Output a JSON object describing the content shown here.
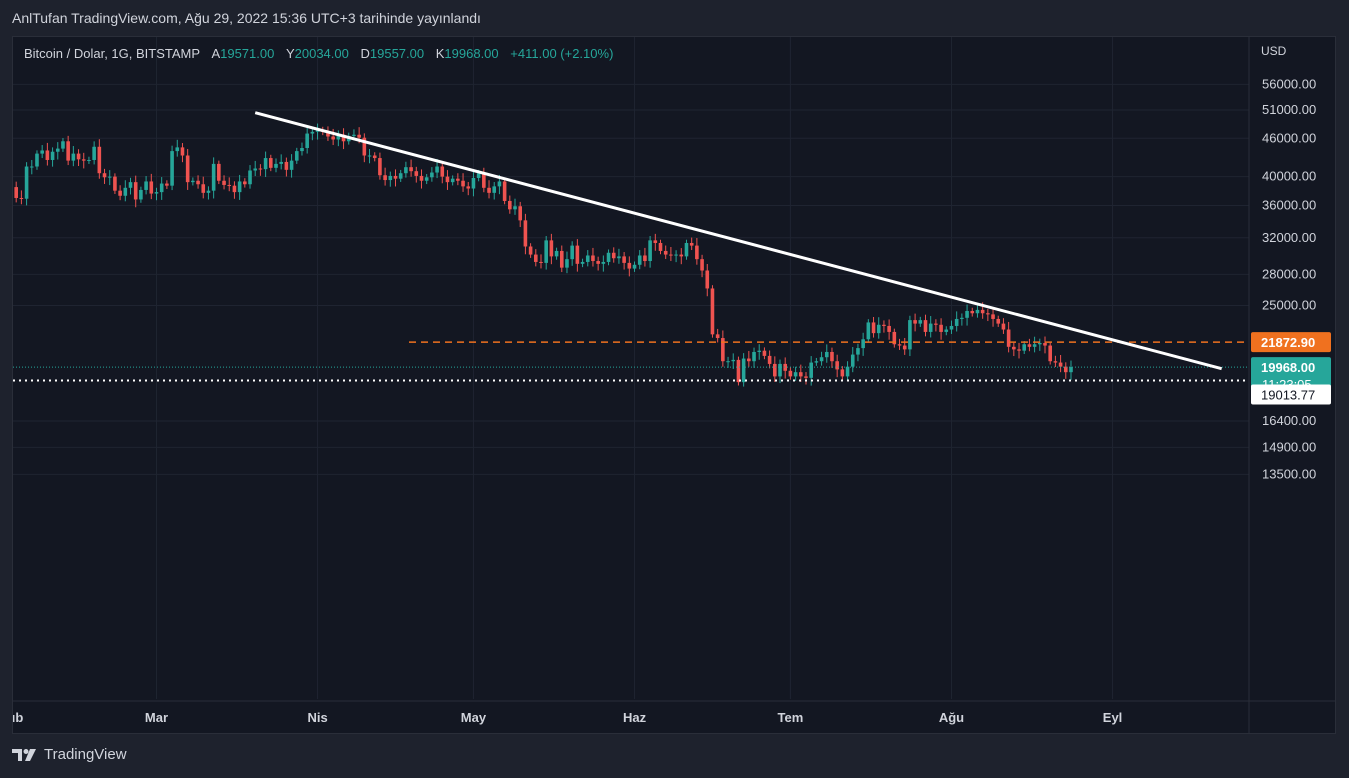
{
  "header": {
    "published": "AnlTufan TradingView.com, Ağu 29, 2022 15:36 UTC+3 tarihinde yayınlandı"
  },
  "legend": {
    "symbol": "Bitcoin / Dolar, 1G, BITSTAMP",
    "open_label": "A",
    "open": "19571.00",
    "high_label": "Y",
    "high": "20034.00",
    "low_label": "D",
    "low": "19557.00",
    "close_label": "K",
    "close": "19968.00",
    "change": "+411.00 (+2.10%)"
  },
  "footer": {
    "brand": "TradingView"
  },
  "colors": {
    "up": "#26a69a",
    "down": "#ef5350",
    "bg": "#131722",
    "grid": "#1f2431",
    "trend": "#ffffff",
    "level": "#f0711f"
  },
  "chart_data": {
    "type": "candlestick",
    "title": "Bitcoin / Dolar, 1G, BITSTAMP",
    "currency": "USD",
    "y_scale": "log",
    "ylim": [
      12000,
      62000
    ],
    "x_start": "2022-02-01",
    "x_ticks": [
      {
        "label": "Şub",
        "date": "2022-02-01"
      },
      {
        "label": "Mar",
        "date": "2022-03-01"
      },
      {
        "label": "Nis",
        "date": "2022-04-01"
      },
      {
        "label": "May",
        "date": "2022-05-01"
      },
      {
        "label": "Haz",
        "date": "2022-06-01"
      },
      {
        "label": "Tem",
        "date": "2022-07-01"
      },
      {
        "label": "Ağu",
        "date": "2022-08-01"
      },
      {
        "label": "Eyl",
        "date": "2022-09-01"
      }
    ],
    "y_ticks": [
      "56000.00",
      "51000.00",
      "46000.00",
      "40000.00",
      "36000.00",
      "32000.00",
      "28000.00",
      "25000.00",
      "16400.00",
      "14900.00",
      "13500.00"
    ],
    "closes": [
      38500,
      37000,
      36900,
      41500,
      41500,
      43500,
      44000,
      42500,
      43800,
      44300,
      45500,
      42400,
      43500,
      42600,
      42400,
      42500,
      44600,
      40500,
      39900,
      40000,
      38000,
      37300,
      38400,
      39200,
      36800,
      38100,
      39300,
      37600,
      37800,
      39000,
      38700,
      43900,
      44500,
      43200,
      39200,
      39400,
      38900,
      37700,
      38000,
      41900,
      39400,
      38800,
      38700,
      37800,
      39300,
      38900,
      40900,
      41200,
      41100,
      42800,
      41300,
      41900,
      42200,
      41000,
      42400,
      43900,
      44400,
      46800,
      47100,
      47400,
      47100,
      46300,
      45800,
      46600,
      45500,
      46400,
      46600,
      46100,
      43200,
      43200,
      42800,
      40200,
      39500,
      40100,
      39700,
      40500,
      41400,
      40800,
      40100,
      39400,
      39900,
      40600,
      41500,
      40000,
      39200,
      39700,
      39400,
      38600,
      38300,
      39800,
      40500,
      38400,
      37700,
      38600,
      39300,
      36600,
      35500,
      35900,
      34100,
      31000,
      30100,
      29300,
      29200,
      31700,
      29900,
      30500,
      28700,
      29600,
      31100,
      29100,
      29300,
      30000,
      29400,
      29100,
      29300,
      30300,
      29700,
      29900,
      29200,
      28600,
      29000,
      30000,
      29400,
      31700,
      31400,
      30500,
      30100,
      30000,
      30100,
      29900,
      31400,
      31100,
      29600,
      28400,
      26600,
      22500,
      22200,
      20400,
      20400,
      20500,
      18900,
      20600,
      20400,
      21100,
      21200,
      20800,
      20200,
      19300,
      20200,
      19700,
      19300,
      19600,
      19300,
      19200,
      20300,
      20400,
      20700,
      21100,
      20400,
      19800,
      19300,
      20000,
      20900,
      21400,
      22100,
      23500,
      22600,
      23300,
      23200,
      22700,
      21700,
      21600,
      21300,
      23700,
      23400,
      23700,
      22700,
      23400,
      23300,
      22700,
      22900,
      23200,
      23800,
      23900,
      24500,
      24300,
      24600,
      24300,
      24200,
      23800,
      23400,
      22900,
      21500,
      21300,
      21200,
      21700,
      21500,
      21700,
      21800,
      21600,
      20400,
      20300,
      20000,
      19600,
      19970
    ],
    "last_close": 19968.0,
    "price_labels": [
      {
        "value": "21872.90",
        "kind": "horizontal-level"
      },
      {
        "value": "19968.00",
        "kind": "last-price",
        "countdown": "11:23:05"
      },
      {
        "value": "19013.77",
        "kind": "horizontal-level"
      }
    ],
    "horizontal_levels": [
      21872.9,
      19013.77
    ],
    "trendline": {
      "from": {
        "date": "2022-03-20",
        "price": 50500
      },
      "to": {
        "date": "2022-09-22",
        "price": 19850
      }
    }
  }
}
